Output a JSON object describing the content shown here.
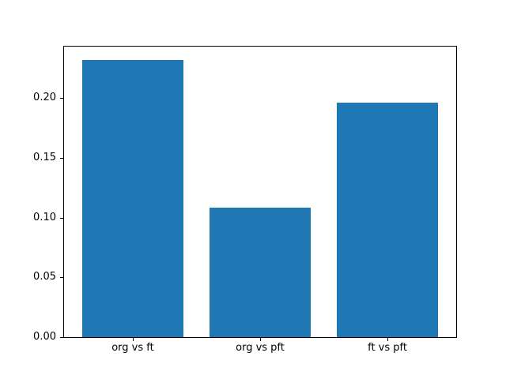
{
  "figure": {
    "background": "#ffffff",
    "spine_color": "#000000",
    "tick_color": "#000000"
  },
  "chart_data": {
    "type": "bar",
    "title": "",
    "xlabel": "",
    "ylabel": "",
    "categories": [
      "org vs ft",
      "org vs pft",
      "ft vs pft"
    ],
    "values": [
      0.232,
      0.108,
      0.196
    ],
    "bar_color": "#1f77b4",
    "bar_width_units": 0.8,
    "xlim": [
      -0.54,
      2.54
    ],
    "ylim": [
      0,
      0.243
    ],
    "yticks": [
      0.0,
      0.05,
      0.1,
      0.15,
      0.2
    ],
    "ytick_labels": [
      "0.00",
      "0.05",
      "0.10",
      "0.15",
      "0.20"
    ],
    "grid": false,
    "legend": null
  }
}
